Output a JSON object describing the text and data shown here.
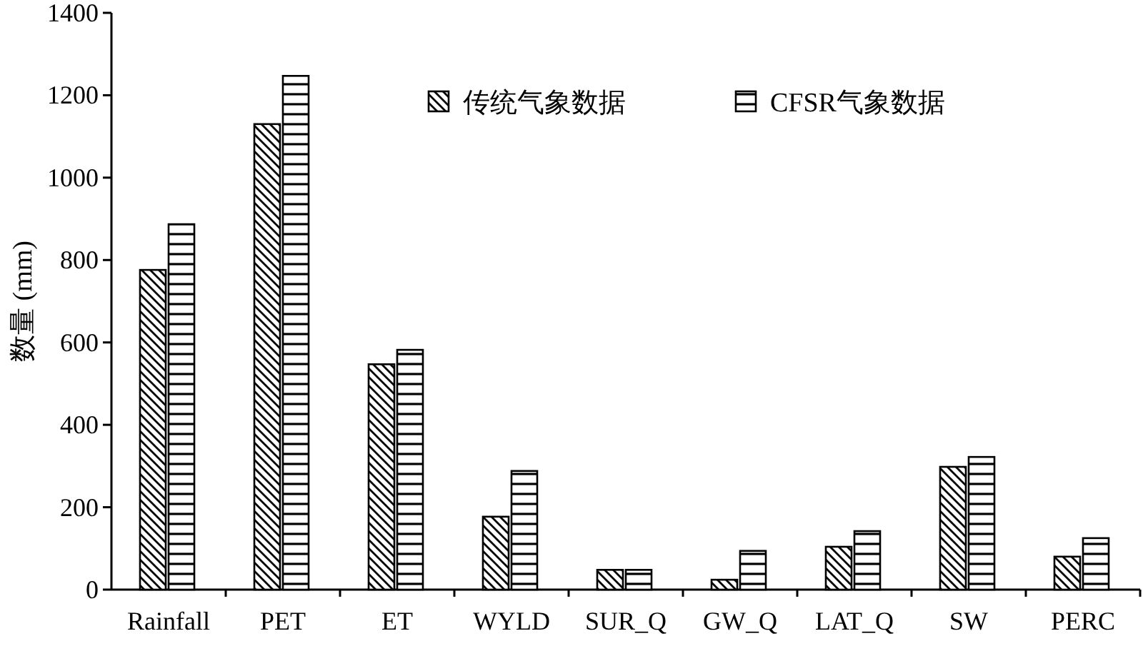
{
  "chart_data": {
    "type": "bar",
    "ylabel": "数量 (mm)",
    "categories": [
      "Rainfall",
      "PET",
      "ET",
      "WYLD",
      "SUR_Q",
      "GW_Q",
      "LAT_Q",
      "SW",
      "PERC"
    ],
    "series": [
      {
        "name": "传统气象数据",
        "color": "#000000",
        "values": [
          776,
          1130,
          547,
          177,
          48,
          24,
          104,
          298,
          80
        ]
      },
      {
        "name": "CFSR气象数据",
        "color": "#000000",
        "values": [
          887,
          1247,
          582,
          288,
          48,
          94,
          142,
          322,
          125
        ]
      }
    ],
    "ylim": [
      0,
      1400
    ],
    "yticks": [
      0,
      200,
      400,
      600,
      800,
      1000,
      1200,
      1400
    ],
    "grid": false,
    "legend": "top right"
  }
}
